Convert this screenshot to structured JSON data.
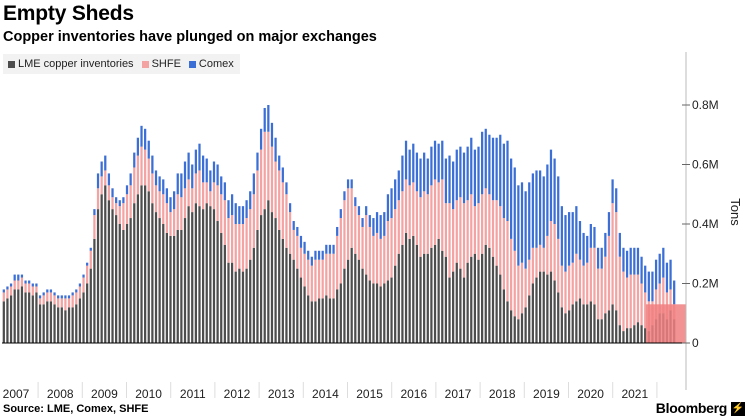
{
  "title": "Empty Sheds",
  "subtitle": "Copper inventories have plunged on major exchanges",
  "source": "Source: LME, Comex, SHFE",
  "brand": "Bloomberg",
  "brand_mark": "⚡",
  "legend": [
    {
      "name": "LME copper inventories",
      "color": "#4d4d4d"
    },
    {
      "name": "SHFE",
      "color": "#f4a3a3"
    },
    {
      "name": "Comex",
      "color": "#3b6fd6"
    }
  ],
  "y_axis_title": "Tons",
  "chart_data": {
    "type": "bar",
    "stacked": true,
    "xlabel": "",
    "ylabel": "Tons",
    "ylim": [
      0,
      0.95
    ],
    "y_ticks": [
      0,
      0.2,
      0.4,
      0.6,
      0.8
    ],
    "y_tick_labels": [
      "0",
      "0.2M",
      "0.4M",
      "0.6M",
      "0.8M"
    ],
    "x_tick_labels": [
      "2007",
      "2008",
      "2009",
      "2010",
      "2011",
      "2012",
      "2013",
      "2014",
      "2015",
      "2016",
      "2017",
      "2018",
      "2019",
      "2020",
      "2021"
    ],
    "x_start_year": 2007,
    "grid": false,
    "highlight": {
      "from_year": 2021.25,
      "value": 0.13,
      "color": "#f07f7f"
    },
    "series": [
      {
        "name": "LME copper inventories",
        "color": "#4d4d4d",
        "values": [
          0.14,
          0.15,
          0.16,
          0.18,
          0.18,
          0.19,
          0.17,
          0.17,
          0.16,
          0.17,
          0.13,
          0.13,
          0.14,
          0.14,
          0.13,
          0.12,
          0.12,
          0.11,
          0.12,
          0.12,
          0.13,
          0.15,
          0.17,
          0.2,
          0.25,
          0.35,
          0.45,
          0.5,
          0.53,
          0.48,
          0.45,
          0.43,
          0.4,
          0.38,
          0.4,
          0.42,
          0.47,
          0.5,
          0.53,
          0.53,
          0.51,
          0.47,
          0.44,
          0.42,
          0.4,
          0.37,
          0.36,
          0.36,
          0.38,
          0.38,
          0.42,
          0.46,
          0.44,
          0.47,
          0.46,
          0.45,
          0.47,
          0.46,
          0.45,
          0.41,
          0.37,
          0.33,
          0.27,
          0.27,
          0.24,
          0.25,
          0.24,
          0.25,
          0.28,
          0.32,
          0.38,
          0.43,
          0.45,
          0.48,
          0.44,
          0.42,
          0.38,
          0.35,
          0.32,
          0.3,
          0.28,
          0.25,
          0.22,
          0.19,
          0.16,
          0.14,
          0.14,
          0.15,
          0.15,
          0.16,
          0.15,
          0.15,
          0.18,
          0.2,
          0.25,
          0.28,
          0.32,
          0.3,
          0.28,
          0.25,
          0.23,
          0.21,
          0.2,
          0.2,
          0.19,
          0.2,
          0.21,
          0.22,
          0.26,
          0.3,
          0.33,
          0.37,
          0.35,
          0.36,
          0.33,
          0.29,
          0.3,
          0.3,
          0.32,
          0.33,
          0.35,
          0.31,
          0.29,
          0.22,
          0.24,
          0.27,
          0.25,
          0.22,
          0.27,
          0.29,
          0.3,
          0.28,
          0.3,
          0.33,
          0.32,
          0.29,
          0.26,
          0.23,
          0.18,
          0.14,
          0.11,
          0.09,
          0.08,
          0.1,
          0.12,
          0.16,
          0.2,
          0.22,
          0.24,
          0.24,
          0.23,
          0.24,
          0.21,
          0.17,
          0.12,
          0.1,
          0.11,
          0.13,
          0.14,
          0.15,
          0.13,
          0.13,
          0.14,
          0.13,
          0.08,
          0.08,
          0.1,
          0.11,
          0.13,
          0.11,
          0.06,
          0.04,
          0.05,
          0.05,
          0.06,
          0.07,
          0.06,
          0.05,
          0.04,
          0.06,
          0.08,
          0.1,
          0.1,
          0.08,
          0.11,
          0.08
        ]
      },
      {
        "name": "SHFE",
        "color": "#f4a3a3",
        "values": [
          0.03,
          0.03,
          0.03,
          0.03,
          0.03,
          0.03,
          0.03,
          0.03,
          0.03,
          0.02,
          0.02,
          0.03,
          0.03,
          0.03,
          0.03,
          0.03,
          0.03,
          0.04,
          0.03,
          0.04,
          0.04,
          0.04,
          0.05,
          0.06,
          0.06,
          0.08,
          0.07,
          0.06,
          0.05,
          0.05,
          0.04,
          0.04,
          0.06,
          0.09,
          0.1,
          0.11,
          0.12,
          0.13,
          0.13,
          0.12,
          0.11,
          0.1,
          0.09,
          0.09,
          0.1,
          0.1,
          0.08,
          0.09,
          0.12,
          0.11,
          0.1,
          0.09,
          0.08,
          0.1,
          0.12,
          0.09,
          0.07,
          0.05,
          0.09,
          0.12,
          0.13,
          0.15,
          0.15,
          0.16,
          0.16,
          0.15,
          0.16,
          0.17,
          0.17,
          0.18,
          0.2,
          0.22,
          0.26,
          0.23,
          0.22,
          0.19,
          0.2,
          0.19,
          0.18,
          0.14,
          0.1,
          0.11,
          0.1,
          0.11,
          0.12,
          0.12,
          0.14,
          0.13,
          0.13,
          0.14,
          0.15,
          0.15,
          0.18,
          0.22,
          0.23,
          0.24,
          0.2,
          0.16,
          0.15,
          0.14,
          0.2,
          0.18,
          0.16,
          0.17,
          0.16,
          0.16,
          0.2,
          0.2,
          0.19,
          0.18,
          0.18,
          0.18,
          0.18,
          0.18,
          0.18,
          0.2,
          0.21,
          0.2,
          0.21,
          0.22,
          0.19,
          0.24,
          0.18,
          0.25,
          0.21,
          0.21,
          0.24,
          0.25,
          0.21,
          0.21,
          0.16,
          0.19,
          0.2,
          0.19,
          0.18,
          0.19,
          0.22,
          0.23,
          0.24,
          0.27,
          0.24,
          0.22,
          0.18,
          0.17,
          0.13,
          0.12,
          0.12,
          0.1,
          0.09,
          0.08,
          0.13,
          0.17,
          0.19,
          0.18,
          0.14,
          0.14,
          0.15,
          0.14,
          0.16,
          0.13,
          0.13,
          0.14,
          0.18,
          0.19,
          0.17,
          0.17,
          0.19,
          0.25,
          0.34,
          0.33,
          0.23,
          0.2,
          0.17,
          0.18,
          0.17,
          0.16,
          0.14,
          0.12,
          0.1,
          0.08,
          0.1,
          0.1,
          0.12,
          0.09,
          0.07,
          0.05
        ]
      },
      {
        "name": "Comex",
        "color": "#3b6fd6",
        "values": [
          0.01,
          0.01,
          0.01,
          0.02,
          0.02,
          0.01,
          0.01,
          0.01,
          0.01,
          0.01,
          0.01,
          0.01,
          0.01,
          0.01,
          0.01,
          0.01,
          0.01,
          0.01,
          0.01,
          0.01,
          0.01,
          0.01,
          0.01,
          0.01,
          0.01,
          0.02,
          0.05,
          0.05,
          0.05,
          0.04,
          0.03,
          0.02,
          0.02,
          0.02,
          0.03,
          0.04,
          0.05,
          0.06,
          0.07,
          0.07,
          0.06,
          0.06,
          0.05,
          0.05,
          0.05,
          0.05,
          0.05,
          0.06,
          0.07,
          0.08,
          0.09,
          0.09,
          0.08,
          0.08,
          0.09,
          0.09,
          0.08,
          0.07,
          0.07,
          0.07,
          0.06,
          0.06,
          0.06,
          0.07,
          0.07,
          0.06,
          0.06,
          0.06,
          0.06,
          0.07,
          0.06,
          0.07,
          0.08,
          0.09,
          0.08,
          0.08,
          0.05,
          0.05,
          0.04,
          0.03,
          0.03,
          0.03,
          0.04,
          0.04,
          0.03,
          0.03,
          0.03,
          0.03,
          0.03,
          0.03,
          0.03,
          0.03,
          0.03,
          0.03,
          0.03,
          0.03,
          0.03,
          0.03,
          0.03,
          0.03,
          0.03,
          0.04,
          0.06,
          0.07,
          0.08,
          0.08,
          0.09,
          0.1,
          0.1,
          0.1,
          0.12,
          0.13,
          0.12,
          0.13,
          0.13,
          0.13,
          0.13,
          0.12,
          0.13,
          0.13,
          0.13,
          0.13,
          0.15,
          0.16,
          0.16,
          0.17,
          0.17,
          0.17,
          0.18,
          0.19,
          0.19,
          0.19,
          0.21,
          0.2,
          0.2,
          0.21,
          0.21,
          0.24,
          0.25,
          0.27,
          0.27,
          0.28,
          0.27,
          0.27,
          0.26,
          0.26,
          0.25,
          0.26,
          0.25,
          0.24,
          0.24,
          0.24,
          0.22,
          0.21,
          0.2,
          0.19,
          0.18,
          0.17,
          0.16,
          0.13,
          0.11,
          0.09,
          0.08,
          0.07,
          0.07,
          0.07,
          0.08,
          0.08,
          0.08,
          0.08,
          0.08,
          0.08,
          0.09,
          0.09,
          0.09,
          0.09,
          0.09,
          0.09,
          0.1,
          0.1,
          0.1,
          0.1,
          0.1,
          0.1,
          0.1,
          0.08,
          0.06,
          0.04
        ]
      }
    ]
  }
}
